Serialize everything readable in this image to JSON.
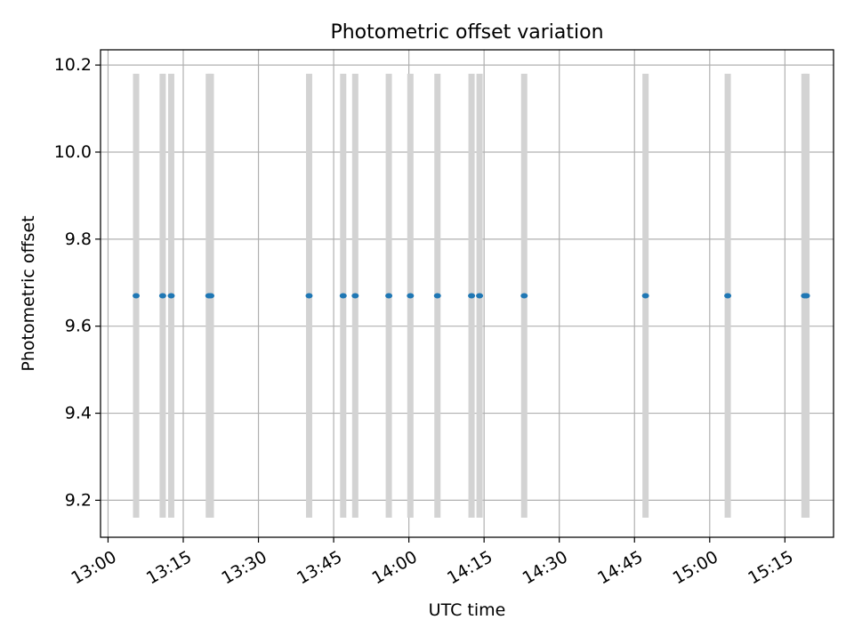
{
  "chart_data": {
    "type": "scatter",
    "title": "Photometric offset variation",
    "xlabel": "UTC time",
    "ylabel": "Photometric offset",
    "x_ticks": [
      "13:00",
      "13:15",
      "13:30",
      "13:45",
      "14:00",
      "14:15",
      "14:30",
      "14:45",
      "15:00",
      "15:15"
    ],
    "y_ticks": [
      "9.2",
      "9.4",
      "9.6",
      "9.8",
      "10.0",
      "10.2"
    ],
    "xlim": [
      "12:58.5",
      "15:24.7"
    ],
    "ylim": [
      9.115,
      10.235
    ],
    "grid": true,
    "legend": "none",
    "series": [
      {
        "x": [
          "13:05.6",
          "13:10.9",
          "13:12.6",
          "13:20.1",
          "13:20.5",
          "13:40.1",
          "13:46.9",
          "13:49.3",
          "13:56.0",
          "14:00.3",
          "14:05.7",
          "14:12.5",
          "14:14.1",
          "14:23.0",
          "14:47.2",
          "15:03.6",
          "15:18.9",
          "15:19.3"
        ],
        "y": [
          9.67,
          9.67,
          9.67,
          9.67,
          9.67,
          9.67,
          9.67,
          9.67,
          9.67,
          9.67,
          9.67,
          9.67,
          9.67,
          9.67,
          9.67,
          9.67,
          9.67,
          9.67
        ],
        "band_low": 9.16,
        "band_high": 10.18,
        "marker_color": "#1f77b4",
        "band_color": "#d3d3d3"
      }
    ],
    "colors": {
      "axes": "#000000",
      "grid": "#b0b0b0"
    }
  }
}
